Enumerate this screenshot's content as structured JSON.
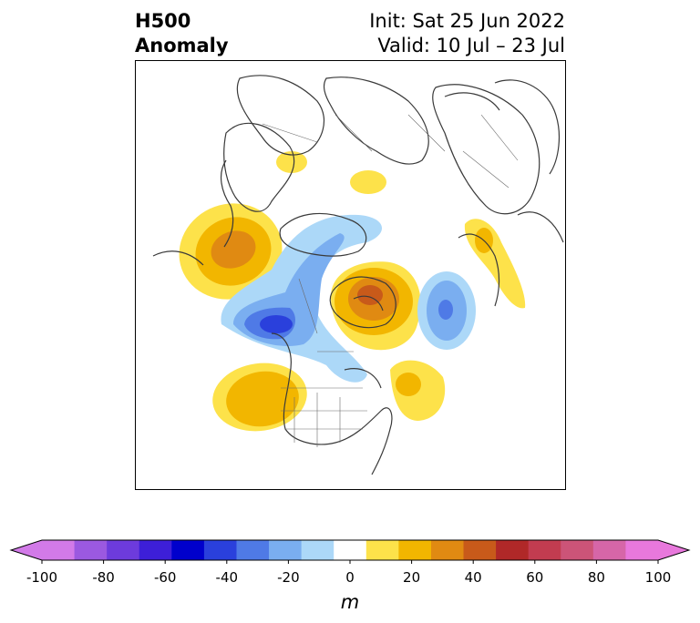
{
  "title": {
    "left_line1": "H500",
    "left_line2": "Anomaly",
    "right_line1": "Init: Sat 25 Jun 2022",
    "right_line2": "Valid: 10 Jul – 23 Jul"
  },
  "colorbar": {
    "label": "m",
    "min": -100,
    "max": 100,
    "tick_values": [
      -100,
      -80,
      -60,
      -40,
      -20,
      0,
      20,
      40,
      60,
      80,
      100
    ],
    "tick_labels": [
      "-100",
      "-80",
      "-60",
      "-40",
      "-20",
      "0",
      "20",
      "40",
      "60",
      "80",
      "100"
    ],
    "colors": [
      "#d27ae8",
      "#9b59e0",
      "#6d3bdc",
      "#3d1fd8",
      "#0000cc",
      "#2a40dc",
      "#4f7ae6",
      "#7aaef0",
      "#acd8f8",
      "#ffffff",
      "#fde24a",
      "#f2b600",
      "#e08a12",
      "#c85a1a",
      "#b02828",
      "#c23c50",
      "#cc5478",
      "#d666a8",
      "#e878dc"
    ],
    "under_color": "#d27ae8",
    "over_color": "#e878dc"
  },
  "map": {
    "projection": "polar stereographic north",
    "region": "North America / North Atlantic / Europe"
  }
}
